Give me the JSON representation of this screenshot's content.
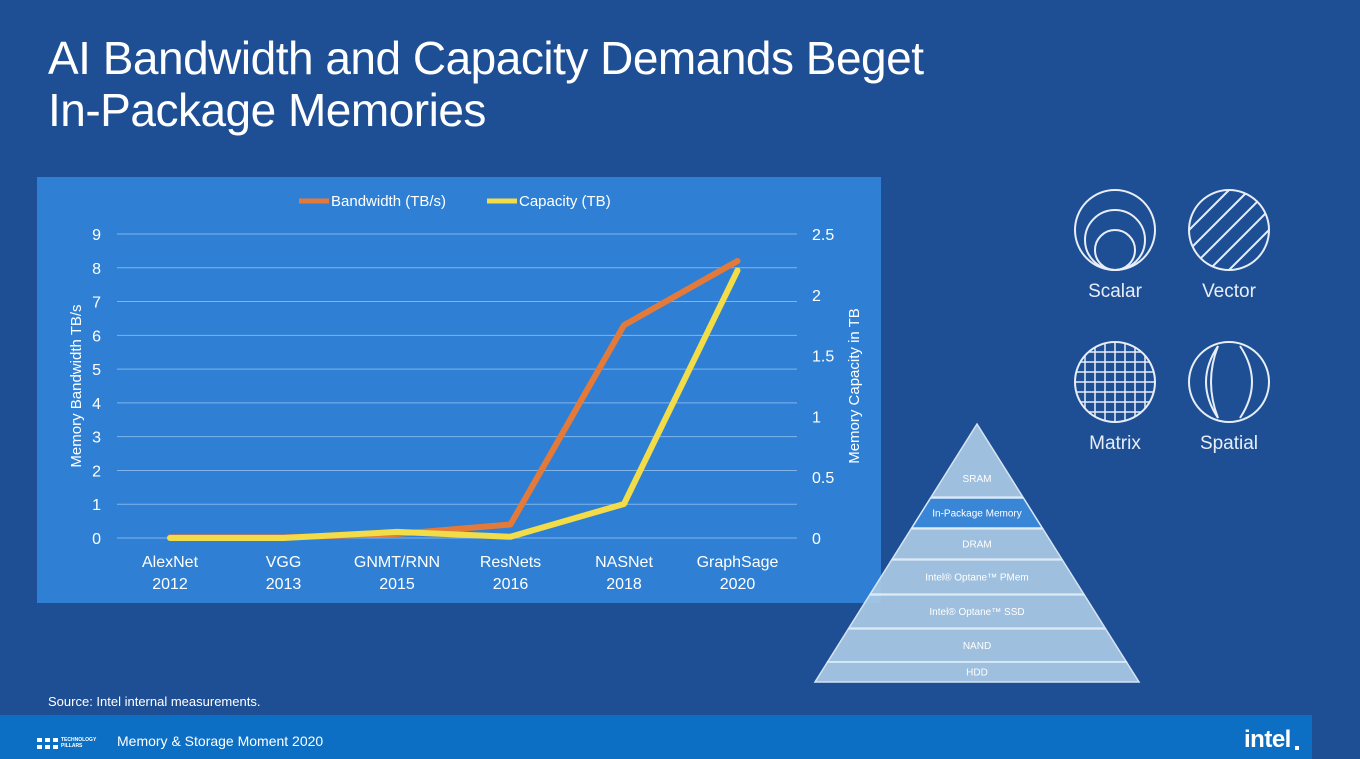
{
  "slide": {
    "title_line1": "AI Bandwidth and Capacity Demands Beget",
    "title_line2": "In-Package Memories",
    "source": "Source: Intel internal measurements.",
    "footer": {
      "pillars_line1": "TECHNOLOGY",
      "pillars_line2": "PILLARS",
      "event": "Memory & Storage Moment 2020",
      "brand": "intel"
    }
  },
  "compute_types": [
    {
      "label": "Scalar",
      "icon": "concentric-circles-icon"
    },
    {
      "label": "Vector",
      "icon": "diagonal-lines-circle-icon"
    },
    {
      "label": "Matrix",
      "icon": "grid-circle-icon"
    },
    {
      "label": "Spatial",
      "icon": "crescent-circle-icon"
    }
  ],
  "memory_hierarchy": {
    "levels": [
      "SRAM",
      "In-Package Memory",
      "DRAM",
      "Intel® Optane™ PMem",
      "Intel® Optane™ SSD",
      "NAND",
      "HDD"
    ],
    "highlighted": "In-Package Memory"
  },
  "chart_data": {
    "type": "line",
    "title": "",
    "categories": [
      [
        "AlexNet",
        "2012"
      ],
      [
        "VGG",
        "2013"
      ],
      [
        "GNMT/RNN",
        "2015"
      ],
      [
        "ResNets",
        "2016"
      ],
      [
        "NASNet",
        "2018"
      ],
      [
        "GraphSage",
        "2020"
      ]
    ],
    "series": [
      {
        "name": "Bandwidth (TB/s)",
        "axis": "left",
        "color": "#e47a3a",
        "values": [
          0.02,
          0.02,
          0.12,
          0.4,
          6.3,
          8.2
        ]
      },
      {
        "name": "Capacity (TB)",
        "axis": "right",
        "color": "#f2dc48",
        "values": [
          0.0,
          0.0,
          0.05,
          0.01,
          0.28,
          2.2
        ]
      }
    ],
    "y_left": {
      "label": "Memory Bandwidth TB/s",
      "min": 0,
      "max": 9,
      "ticks": [
        "0",
        "1",
        "2",
        "3",
        "4",
        "5",
        "6",
        "7",
        "8",
        "9"
      ]
    },
    "y_right": {
      "label": "Memory Capacity in TB",
      "min": 0,
      "max": 2.5,
      "ticks": [
        "0",
        "0.5",
        "1",
        "1.5",
        "2",
        "2.5"
      ]
    },
    "grid": true,
    "legend_position": "top-center"
  }
}
